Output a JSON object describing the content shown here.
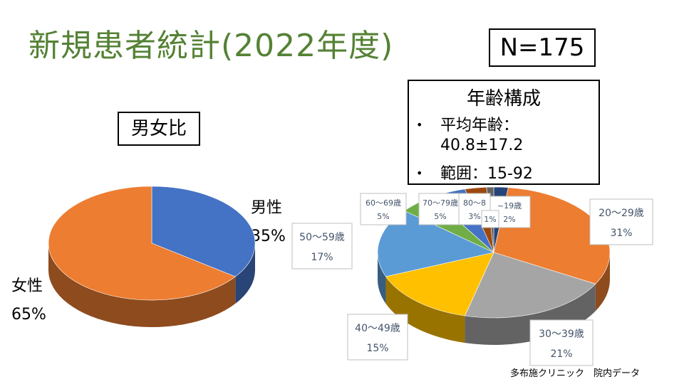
{
  "title": "新規患者統計(2022年度)",
  "n_label": "N=175",
  "age_box": {
    "heading": "年齢構成",
    "bullet": "•",
    "line1": "平均年齢：",
    "line2": "40.8±17.2",
    "line3": "範囲：15-92"
  },
  "sex_box": {
    "heading": "男女比"
  },
  "footer": "多布施クリニック　院内データ",
  "chart_data": [
    {
      "type": "pie",
      "title": "男女比",
      "slices": [
        {
          "label": "男性",
          "pct_label": "35%",
          "value": 35,
          "color": "#4472c4"
        },
        {
          "label": "女性",
          "pct_label": "65%",
          "value": 65,
          "color": "#ed7d31"
        }
      ]
    },
    {
      "type": "pie",
      "title": "年齢構成",
      "slices": [
        {
          "label": "~19歳",
          "pct_label": "2%",
          "value": 2,
          "color": "#264478"
        },
        {
          "label": "20～29歳",
          "pct_label": "31%",
          "value": 31,
          "color": "#ed7d31"
        },
        {
          "label": "30～39歳",
          "pct_label": "21%",
          "value": 21,
          "color": "#a5a5a5"
        },
        {
          "label": "40～49歳",
          "pct_label": "15%",
          "value": 15,
          "color": "#ffc000"
        },
        {
          "label": "50～59歳",
          "pct_label": "17%",
          "value": 17,
          "color": "#5b9bd5"
        },
        {
          "label": "60～69歳",
          "pct_label": "5%",
          "value": 5,
          "color": "#70ad47"
        },
        {
          "label": "70～79歳",
          "pct_label": "5%",
          "value": 5,
          "color": "#4472c4"
        },
        {
          "label": "80～8",
          "pct_label": "3%",
          "value": 3,
          "color": "#9e480e"
        },
        {
          "label": "",
          "pct_label": "1%",
          "value": 1,
          "color": "#636363"
        }
      ]
    }
  ]
}
